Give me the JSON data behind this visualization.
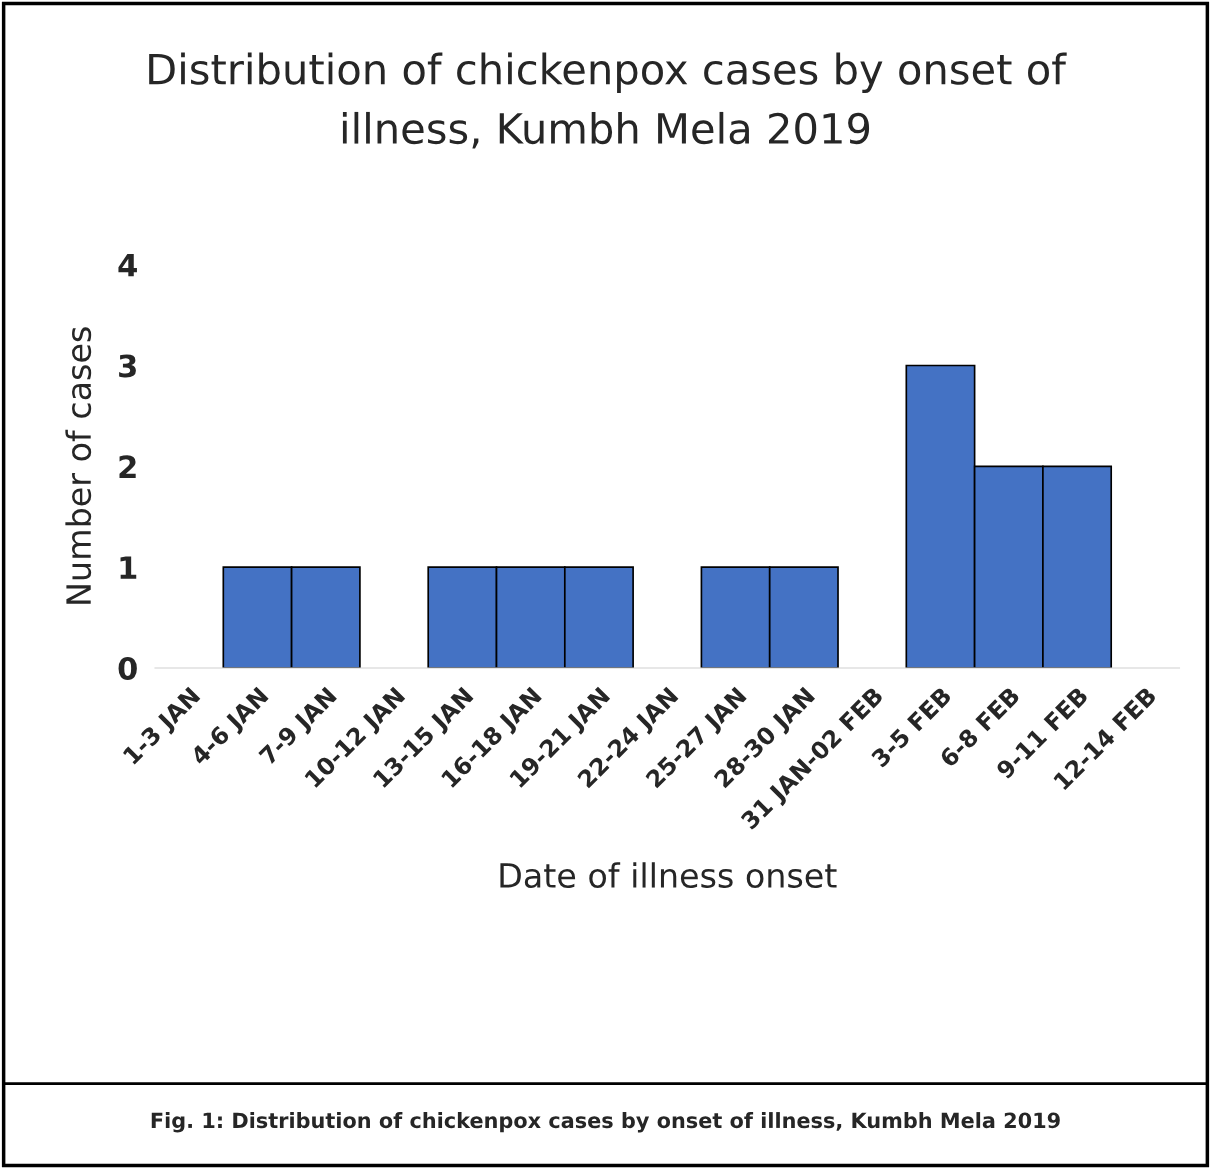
{
  "chart_data": {
    "type": "bar",
    "title": "Distribution of chickenpox cases by onset of\nillness, Kumbh Mela 2019",
    "xlabel": "Date of illness onset",
    "ylabel": "Number of cases",
    "categories": [
      "1-3 JAN",
      "4-6 JAN",
      "7-9 JAN",
      "10-12 JAN",
      "13-15 JAN",
      "16-18 JAN",
      "19-21 JAN",
      "22-24 JAN",
      "25-27 JAN",
      "28-30 JAN",
      "31 JAN-02 FEB",
      "3-5 FEB",
      "6-8 FEB",
      "9-11 FEB",
      "12-14 FEB"
    ],
    "values": [
      0,
      1,
      1,
      0,
      1,
      1,
      1,
      0,
      1,
      1,
      0,
      3,
      2,
      2,
      0
    ],
    "color": "#4472c4",
    "ylim": [
      0,
      4
    ],
    "yticks": [
      0,
      1,
      2,
      3,
      4
    ],
    "grid": false,
    "legend": false,
    "annotations": [
      "Fig. 1: Distribution of chickenpox cases by onset of illness, Kumbh Mela 2019"
    ]
  }
}
